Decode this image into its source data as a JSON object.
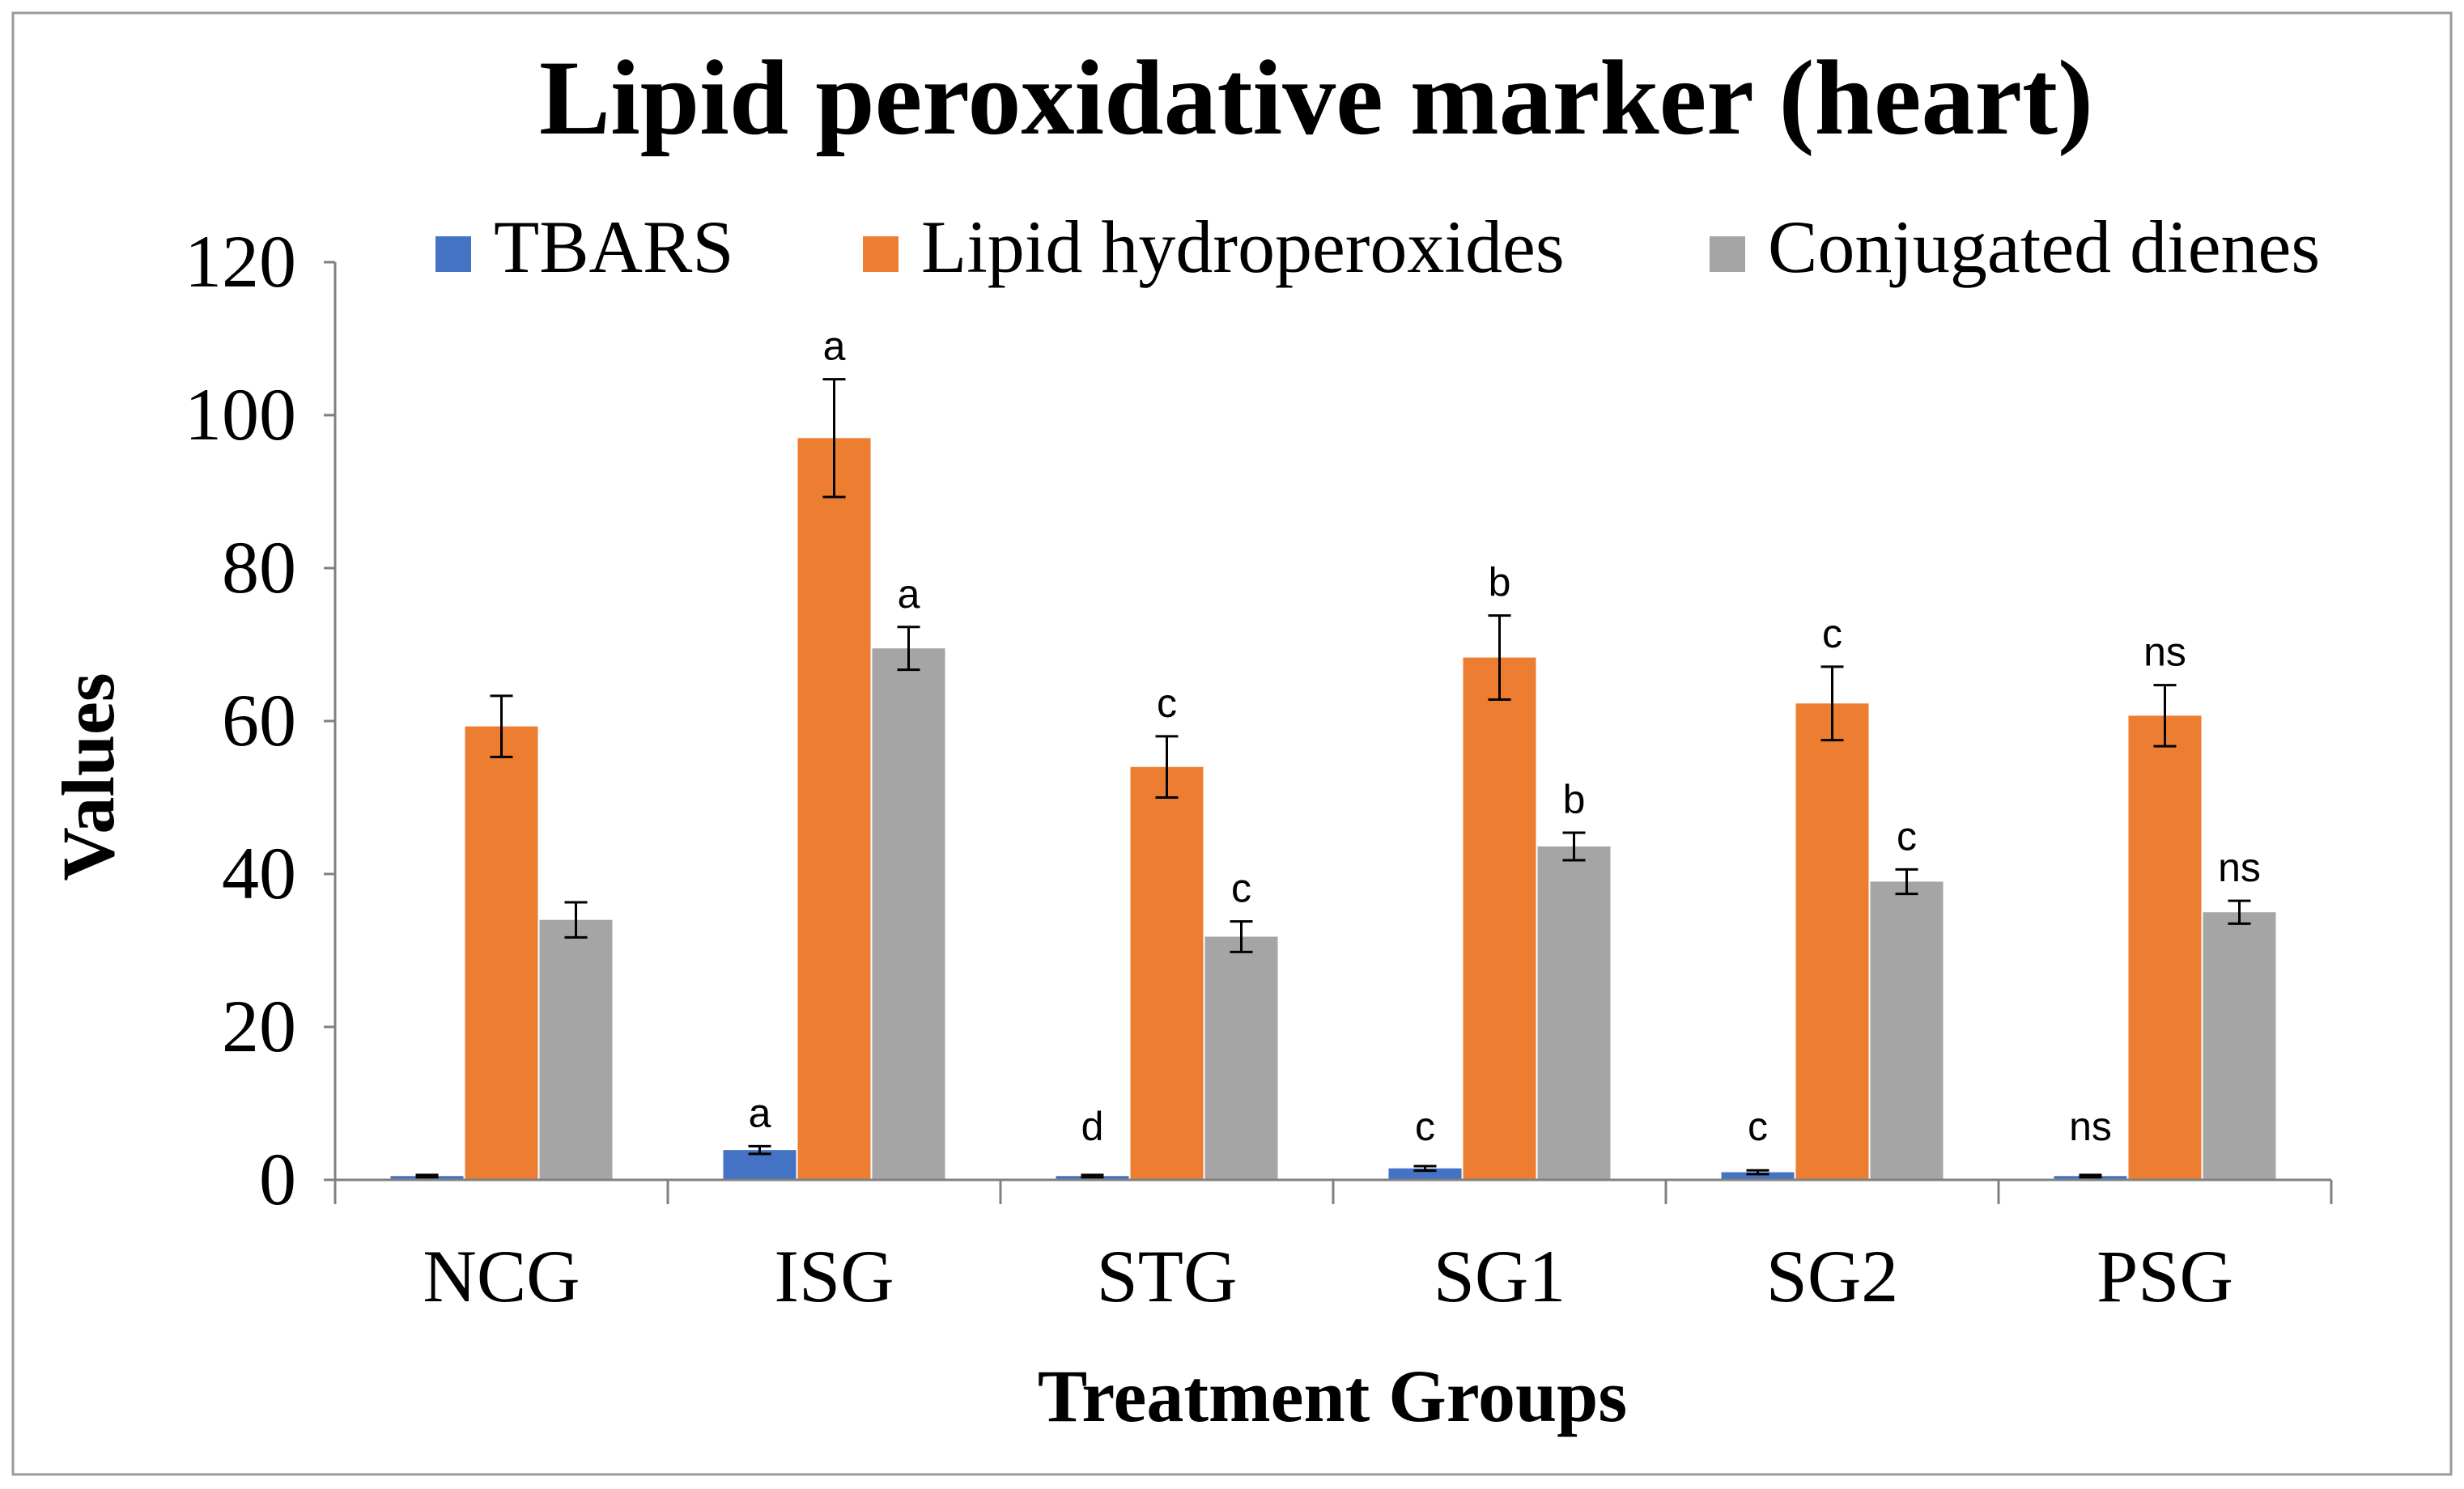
{
  "chart_data": {
    "type": "bar",
    "title": "Lipid peroxidative marker (heart)",
    "xlabel": "Treatment Groups",
    "ylabel": "Values",
    "ylim": [
      0,
      120
    ],
    "yticks": [
      0,
      20,
      40,
      60,
      80,
      100,
      120
    ],
    "grid": false,
    "legend_position": "top",
    "categories": [
      "NCG",
      "ISG",
      "STG",
      "SG1",
      "SG2",
      "PSG"
    ],
    "series": [
      {
        "name": "TBARS",
        "color": "#4472C4",
        "values": [
          0.5,
          3.9,
          0.5,
          1.5,
          1.0,
          0.5
        ],
        "errors": [
          0.15,
          0.5,
          0.15,
          0.3,
          0.25,
          0.15
        ],
        "labels": [
          "",
          "a",
          "d",
          "c",
          "c",
          "ns"
        ]
      },
      {
        "name": "Lipid hydroperoxides",
        "color": "#ED7D31",
        "values": [
          59.3,
          97.0,
          54.0,
          68.3,
          62.3,
          60.7
        ],
        "errors": [
          4.0,
          7.7,
          4.0,
          5.5,
          4.8,
          4.0
        ],
        "labels": [
          "",
          "a",
          "c",
          "b",
          "c",
          "ns"
        ]
      },
      {
        "name": "Conjugated dienes",
        "color": "#A5A5A5",
        "values": [
          34.0,
          69.5,
          31.8,
          43.6,
          39.0,
          35.0
        ],
        "errors": [
          2.3,
          2.8,
          2.0,
          1.8,
          1.6,
          1.5
        ],
        "labels": [
          "",
          "a",
          "c",
          "b",
          "c",
          "ns"
        ]
      }
    ]
  }
}
